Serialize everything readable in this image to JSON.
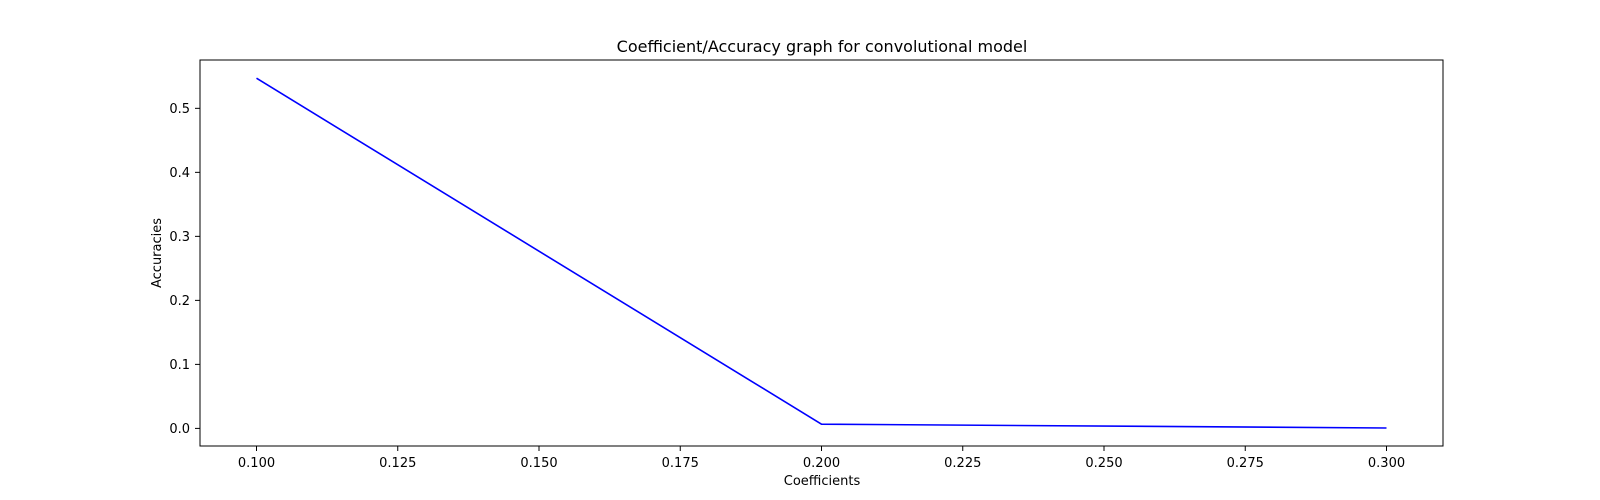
{
  "chart_data": {
    "type": "line",
    "title": "Coefficient/Accuracy graph for convolutional model",
    "xlabel": "Coefficients",
    "ylabel": "Accuracies",
    "xlim": [
      0.09,
      0.31
    ],
    "ylim": [
      -0.0275,
      0.5755
    ],
    "x_ticks": [
      0.1,
      0.125,
      0.15,
      0.175,
      0.2,
      0.225,
      0.25,
      0.275,
      0.3
    ],
    "x_tick_labels": [
      "0.100",
      "0.125",
      "0.150",
      "0.175",
      "0.200",
      "0.225",
      "0.250",
      "0.275",
      "0.300"
    ],
    "y_ticks": [
      0.0,
      0.1,
      0.2,
      0.3,
      0.4,
      0.5
    ],
    "y_tick_labels": [
      "0.0",
      "0.1",
      "0.2",
      "0.3",
      "0.4",
      "0.5"
    ],
    "grid": false,
    "series": [
      {
        "color": "#0000ff",
        "x": [
          0.1,
          0.2,
          0.3
        ],
        "y": [
          0.547,
          0.0066,
          0.0006
        ]
      }
    ]
  }
}
